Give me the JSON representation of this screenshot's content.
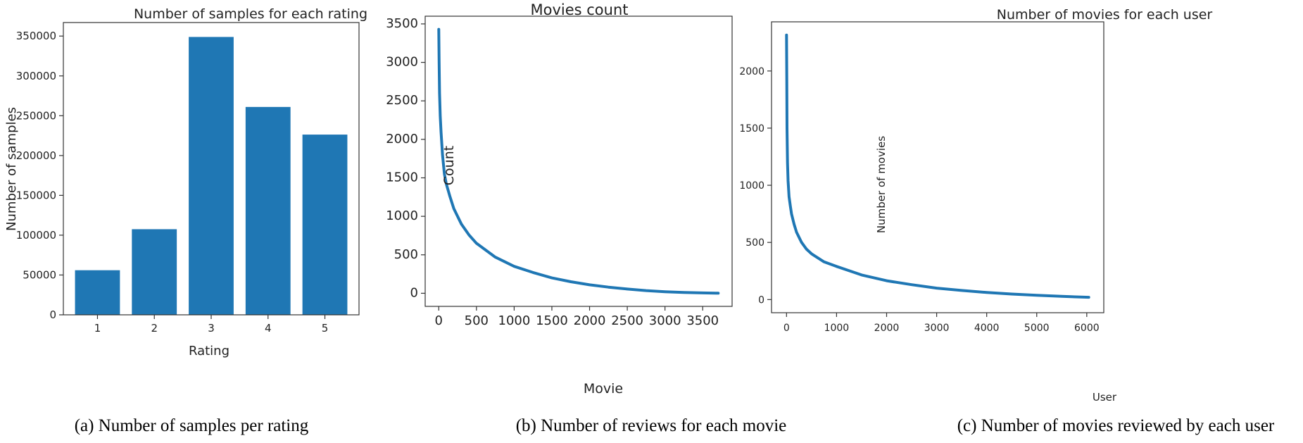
{
  "chart_data": [
    {
      "type": "bar",
      "title": "Number of samples for each rating",
      "xlabel": "Rating",
      "ylabel": "Number of samples",
      "categories": [
        "1",
        "2",
        "3",
        "4",
        "5"
      ],
      "values": [
        56000,
        107500,
        348900,
        261000,
        226300
      ],
      "ylim": [
        0,
        367000
      ],
      "yticks": [
        0,
        50000,
        100000,
        150000,
        200000,
        250000,
        300000,
        350000
      ],
      "color": "#1f77b4",
      "grid": false,
      "caption": "(a) Number of samples per rating"
    },
    {
      "type": "line",
      "title": "Movies count",
      "xlabel": "Movie",
      "ylabel": "Count",
      "x": [
        0,
        5,
        10,
        20,
        30,
        50,
        75,
        100,
        150,
        200,
        300,
        400,
        500,
        750,
        1000,
        1250,
        1500,
        1750,
        2000,
        2250,
        2500,
        2750,
        3000,
        3250,
        3500,
        3706
      ],
      "y": [
        3430,
        3000,
        2600,
        2300,
        2100,
        1800,
        1550,
        1420,
        1250,
        1100,
        900,
        760,
        650,
        470,
        350,
        270,
        200,
        150,
        110,
        80,
        55,
        35,
        20,
        10,
        5,
        1
      ],
      "xlim": [
        -180,
        3890
      ],
      "ylim": [
        -170,
        3600
      ],
      "xticks": [
        0,
        500,
        1000,
        1500,
        2000,
        2500,
        3000,
        3500
      ],
      "yticks": [
        0,
        500,
        1000,
        1500,
        2000,
        2500,
        3000,
        3500
      ],
      "color": "#1f77b4",
      "grid": false,
      "caption": "(b) Number of reviews for each movie"
    },
    {
      "type": "line",
      "title": "Number of movies for each user",
      "xlabel": "User",
      "ylabel": "Number of movies",
      "x": [
        0,
        5,
        10,
        20,
        30,
        50,
        75,
        100,
        150,
        200,
        300,
        400,
        500,
        750,
        1000,
        1500,
        2000,
        2500,
        3000,
        3500,
        4000,
        4500,
        5000,
        5500,
        6040
      ],
      "y": [
        2314,
        1900,
        1500,
        1200,
        1040,
        900,
        820,
        750,
        660,
        590,
        500,
        440,
        400,
        330,
        290,
        215,
        165,
        130,
        100,
        80,
        62,
        48,
        37,
        28,
        20
      ],
      "xlim": [
        -300,
        6340
      ],
      "ylim": [
        -115,
        2430
      ],
      "xticks": [
        0,
        1000,
        2000,
        3000,
        4000,
        5000,
        6000
      ],
      "yticks": [
        0,
        500,
        1000,
        1500,
        2000
      ],
      "color": "#1f77b4",
      "grid": false,
      "caption": "(c) Number of movies reviewed by each user"
    }
  ]
}
